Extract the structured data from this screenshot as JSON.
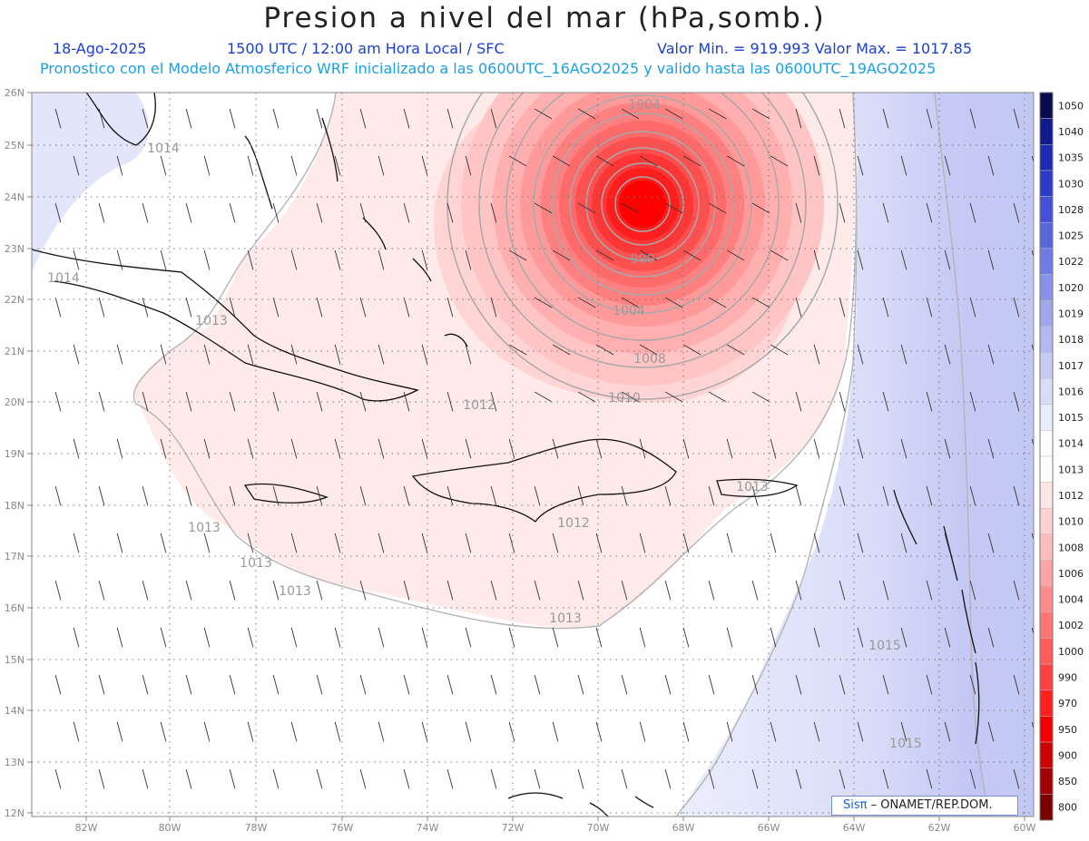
{
  "title": "Presion a nivel del mar (hPa,somb.)",
  "header": {
    "date": "18-Ago-2025",
    "time": "1500 UTC / 12:00 am Hora Local / SFC",
    "values": "Valor Min. = 919.993   Valor Max. = 1017.85",
    "init": "Pronostico con el Modelo Atmosferico WRF inicializado a las 0600UTC_16AGO2025 y valido hasta las  0600UTC_19AGO2025"
  },
  "axes": {
    "lon_labels": [
      "82W",
      "80W",
      "78W",
      "76W",
      "74W",
      "72W",
      "70W",
      "68W",
      "66W",
      "64W",
      "62W",
      "60W"
    ],
    "lat_labels": [
      "26N",
      "25N",
      "24N",
      "23N",
      "22N",
      "21N",
      "20N",
      "19N",
      "18N",
      "17N",
      "16N",
      "15N",
      "14N",
      "13N",
      "12N"
    ]
  },
  "contour_labels": [
    "1014",
    "1014",
    "1013",
    "1013",
    "1013",
    "1013",
    "1012",
    "1013",
    "1013",
    "1012",
    "1010",
    "1008",
    "1004",
    "990",
    "1004",
    "1015",
    "1015"
  ],
  "colorbar": {
    "levels": [
      "1050",
      "1040",
      "1035",
      "1030",
      "1028",
      "1025",
      "1022",
      "1020",
      "1019",
      "1018",
      "1017",
      "1016",
      "1015",
      "1014",
      "1013",
      "1012",
      "1010",
      "1008",
      "1006",
      "1004",
      "1002",
      "1000",
      "990",
      "970",
      "950",
      "900",
      "850",
      "800"
    ],
    "colors": [
      "#0a0a50",
      "#101a8a",
      "#1e2ab0",
      "#2e3ac8",
      "#4450d6",
      "#5a66dc",
      "#717ce2",
      "#8891e8",
      "#9ea6ec",
      "#b3b9f1",
      "#c8ccf4",
      "#dadcf7",
      "#ebecfb",
      "#ffffff",
      "#ffffff",
      "#ffe6e6",
      "#ffd2d2",
      "#ffbcbc",
      "#ffa4a4",
      "#ff8c8c",
      "#ff7474",
      "#ff5c5c",
      "#ff4040",
      "#ff2020",
      "#f20000",
      "#cc0000",
      "#a00000",
      "#7a0000"
    ]
  },
  "credit": {
    "logo": "Sisπ",
    "text": "– ONAMET/REP.DOM."
  },
  "colors": {
    "header_blue": "#1a3fd0",
    "header_cyan": "#1aa0e8",
    "low_center": "#ff0000",
    "high_east": "#b8bdf2"
  }
}
